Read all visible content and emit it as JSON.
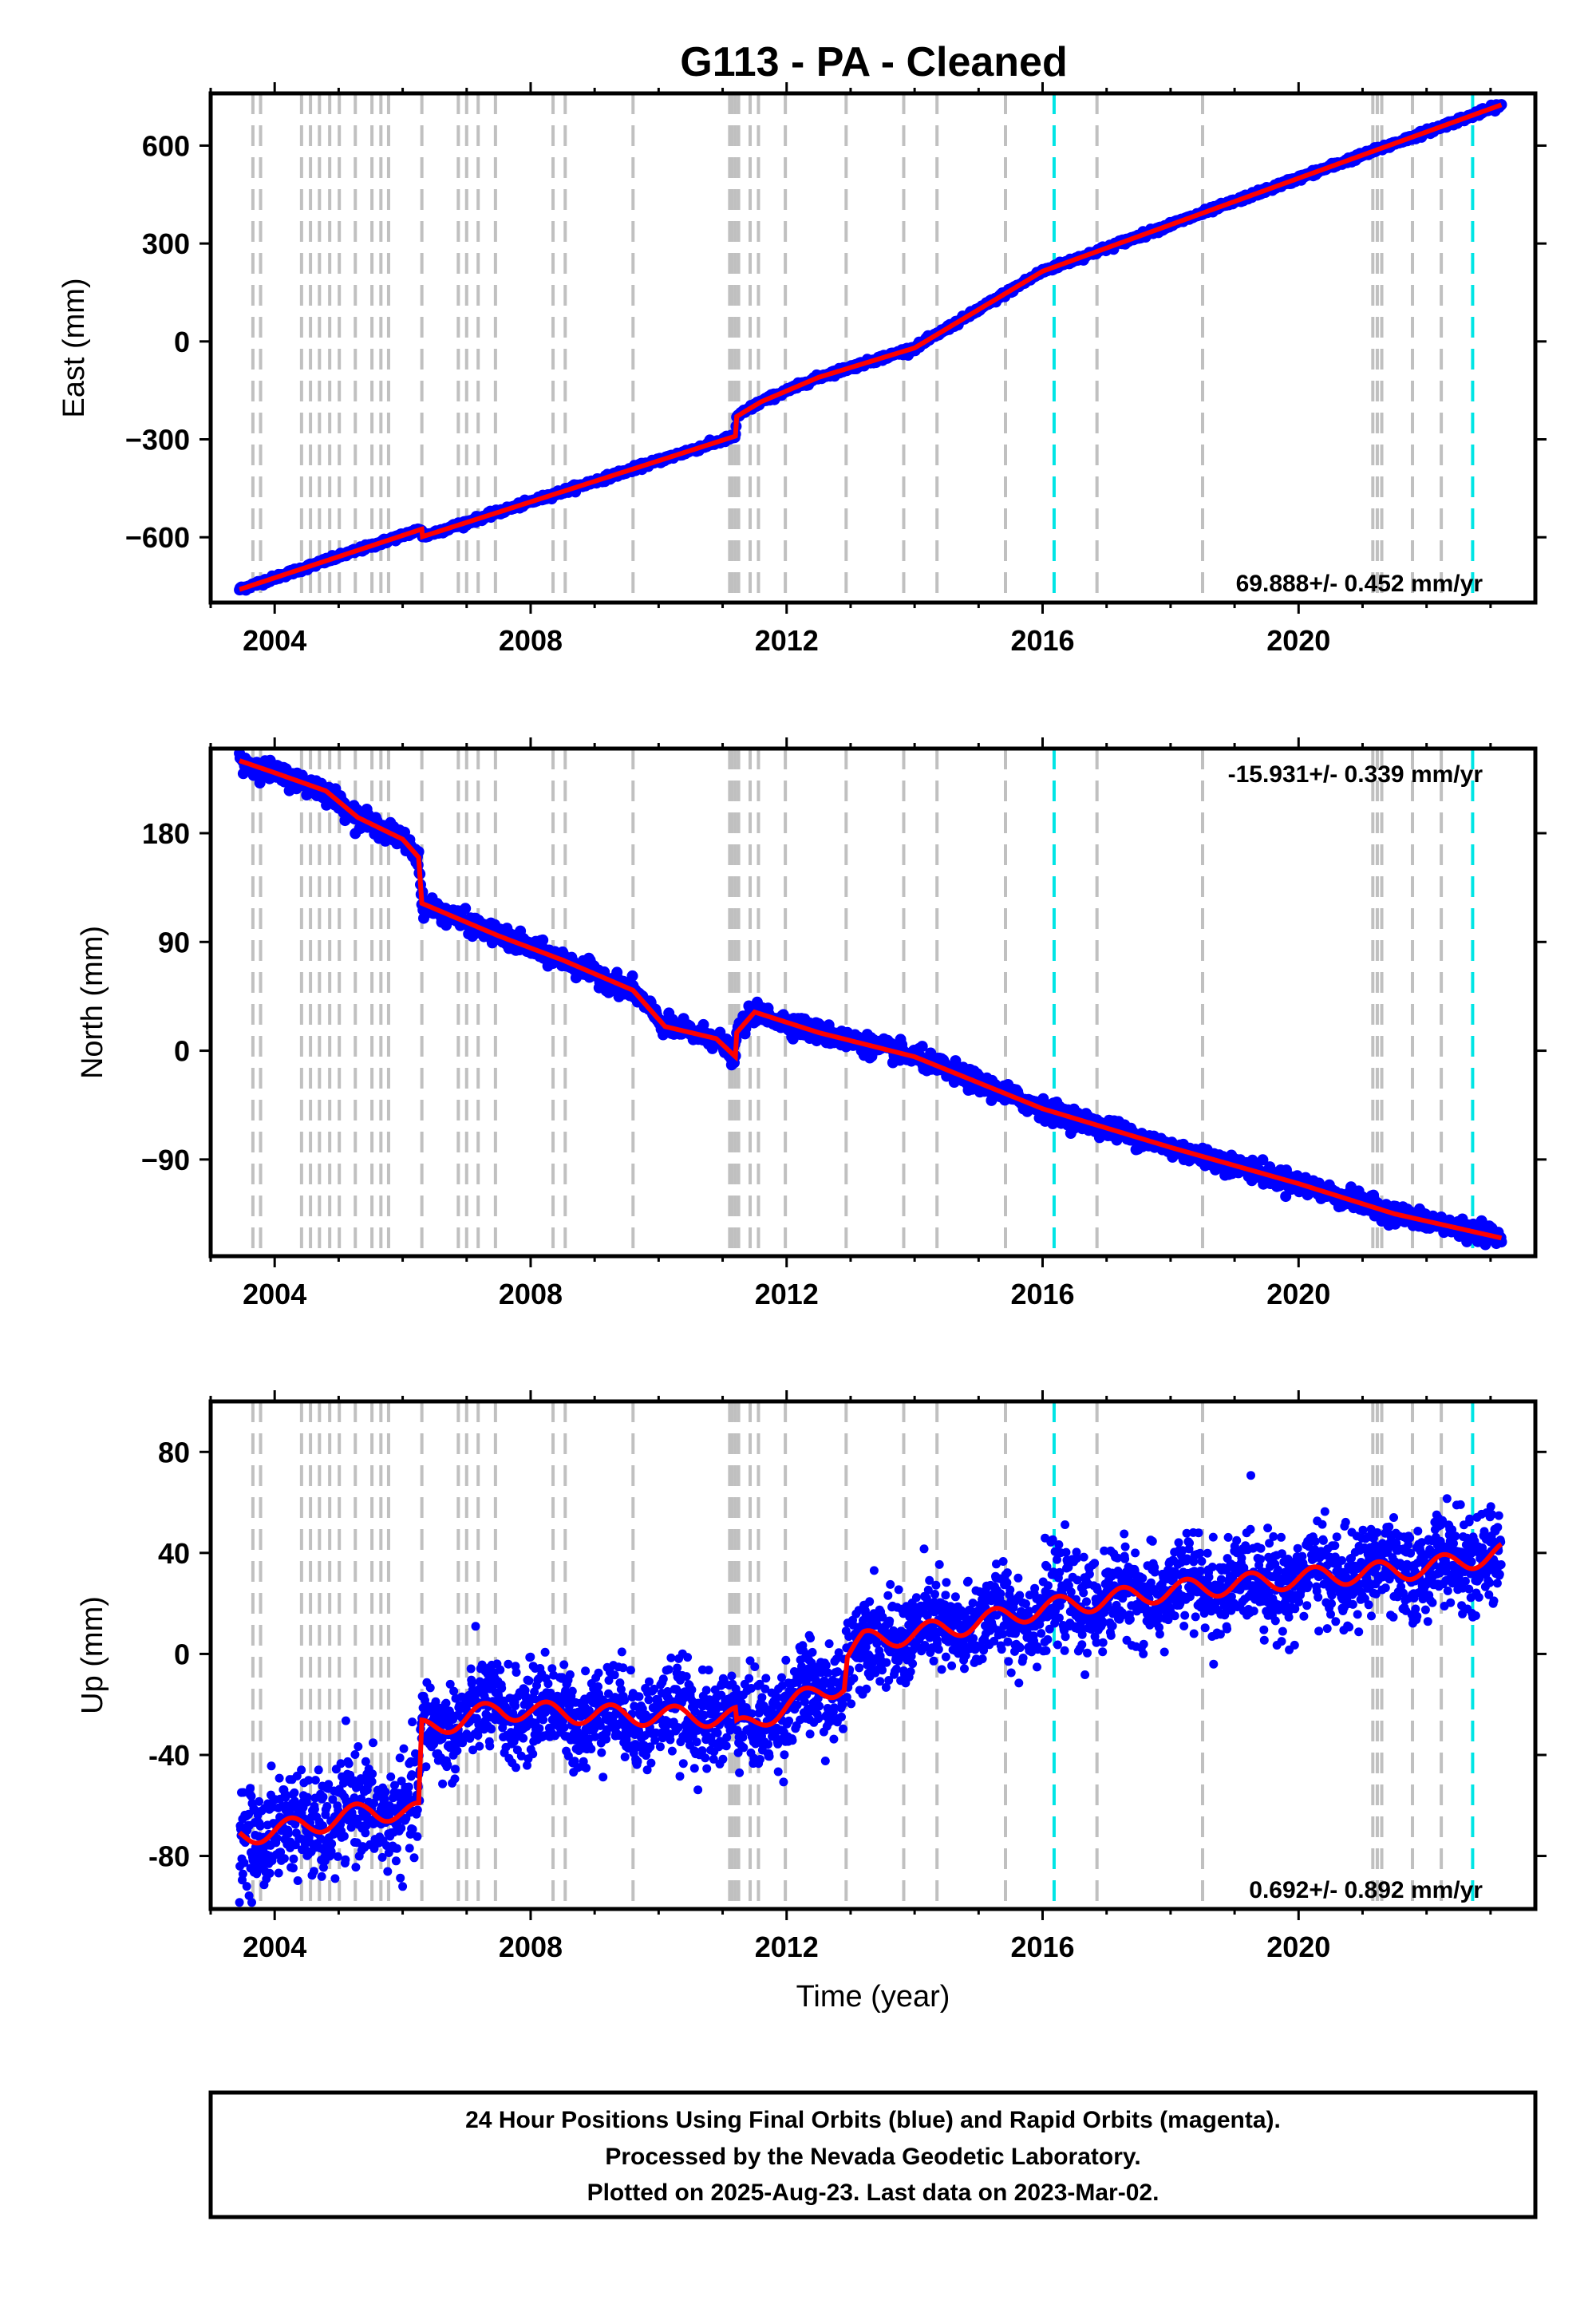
{
  "title": "G113  - PA - Cleaned",
  "footer": {
    "lines": [
      "24 Hour Positions Using Final Orbits (blue) and Rapid Orbits (magenta).",
      "Processed by the Nevada Geodetic Laboratory.",
      "Plotted on 2025-Aug-23. Last data on 2023-Mar-02."
    ]
  },
  "colors": {
    "data_points": "#0000ff",
    "model_line": "#ff0000",
    "event_line": "#c0c0c0",
    "equipment_change_line": "#00e5e5",
    "frame": "#000000"
  },
  "chart_data": [
    {
      "type": "scatter",
      "panel": "East",
      "ylabel": "East (mm)",
      "xlabel": "",
      "xlim": [
        2003.0,
        2023.7
      ],
      "ylim": [
        -800,
        760
      ],
      "x_ticks": [
        "2004",
        "2008",
        "2012",
        "2016",
        "2020"
      ],
      "y_ticks": [
        "600",
        "300",
        "0",
        "−300",
        "−600"
      ],
      "y_tick_values": [
        600,
        300,
        0,
        -300,
        -600
      ],
      "rate_label": "69.888+/- 0.452 mm/yr",
      "rate_position": "bottom-right",
      "scatter_noise_mm": 4,
      "model": {
        "name": "red trend",
        "points": [
          [
            2003.45,
            -760
          ],
          [
            2006.3,
            -575
          ],
          [
            2006.31,
            -598
          ],
          [
            2011.2,
            -290
          ],
          [
            2011.22,
            -230
          ],
          [
            2011.6,
            -185
          ],
          [
            2012.5,
            -110
          ],
          [
            2014.0,
            -20
          ],
          [
            2016.0,
            215
          ],
          [
            2020.0,
            500
          ],
          [
            2023.17,
            725
          ]
        ]
      }
    },
    {
      "type": "scatter",
      "panel": "North",
      "ylabel": "North (mm)",
      "xlabel": "",
      "xlim": [
        2003.0,
        2023.7
      ],
      "ylim": [
        -170,
        250
      ],
      "x_ticks": [
        "2004",
        "2008",
        "2012",
        "2016",
        "2020"
      ],
      "y_ticks": [
        "180",
        "90",
        "0",
        "−90"
      ],
      "y_tick_values": [
        180,
        90,
        0,
        -90
      ],
      "rate_label": "-15.931+/- 0.339 mm/yr",
      "rate_position": "top-right",
      "scatter_noise_mm": 4,
      "model": {
        "name": "red trend",
        "points": [
          [
            2003.45,
            240
          ],
          [
            2004.0,
            230
          ],
          [
            2004.8,
            215
          ],
          [
            2005.3,
            193
          ],
          [
            2006.0,
            175
          ],
          [
            2006.25,
            160
          ],
          [
            2006.3,
            122
          ],
          [
            2007.5,
            95
          ],
          [
            2008.5,
            75
          ],
          [
            2009.6,
            50
          ],
          [
            2010.1,
            20
          ],
          [
            2010.9,
            10
          ],
          [
            2011.2,
            -5
          ],
          [
            2011.22,
            15
          ],
          [
            2011.5,
            32
          ],
          [
            2012.5,
            15
          ],
          [
            2014.0,
            -5
          ],
          [
            2016.0,
            -48
          ],
          [
            2018.0,
            -80
          ],
          [
            2020.0,
            -110
          ],
          [
            2021.5,
            -135
          ],
          [
            2023.17,
            -155
          ]
        ]
      }
    },
    {
      "type": "scatter",
      "panel": "Up",
      "ylabel": "Up (mm)",
      "xlabel": "Time (year)",
      "xlim": [
        2003.0,
        2023.7
      ],
      "ylim": [
        -101,
        100
      ],
      "x_ticks": [
        "2004",
        "2008",
        "2012",
        "2016",
        "2020"
      ],
      "y_ticks": [
        "80",
        "40",
        "0",
        "-40",
        "-80"
      ],
      "y_tick_values": [
        80,
        40,
        0,
        -40,
        -80
      ],
      "rate_label": "0.692+/- 0.892 mm/yr",
      "rate_position": "bottom-right",
      "scatter_noise_mm": 9,
      "seasonal_amplitude_mm": 4,
      "model": {
        "name": "red trend",
        "points": [
          [
            2003.45,
            -72
          ],
          [
            2004.5,
            -68
          ],
          [
            2005.5,
            -62
          ],
          [
            2006.25,
            -63
          ],
          [
            2006.3,
            -30
          ],
          [
            2007.5,
            -22
          ],
          [
            2009.0,
            -24
          ],
          [
            2011.2,
            -25
          ],
          [
            2011.22,
            -30
          ],
          [
            2012.5,
            -15
          ],
          [
            2012.9,
            -12
          ],
          [
            2012.95,
            0
          ],
          [
            2013.2,
            5
          ],
          [
            2014.5,
            10
          ],
          [
            2016.0,
            18
          ],
          [
            2018.0,
            25
          ],
          [
            2020.0,
            30
          ],
          [
            2022.0,
            34
          ],
          [
            2023.17,
            40
          ]
        ]
      }
    }
  ],
  "event_lines": {
    "gray_years": [
      2003.66,
      2003.78,
      2004.42,
      2004.56,
      2004.7,
      2004.86,
      2005.01,
      2005.26,
      2005.52,
      2005.66,
      2005.78,
      2006.3,
      2006.87,
      2007.0,
      2007.18,
      2007.45,
      2008.35,
      2008.54,
      2009.6,
      2011.11,
      2011.15,
      2011.2,
      2011.25,
      2011.43,
      2011.56,
      2011.98,
      2012.93,
      2013.83,
      2014.35,
      2015.42,
      2016.85,
      2018.5,
      2021.16,
      2021.23,
      2021.3,
      2021.78,
      2022.23
    ],
    "cyan_years": [
      2016.18,
      2022.72
    ]
  }
}
